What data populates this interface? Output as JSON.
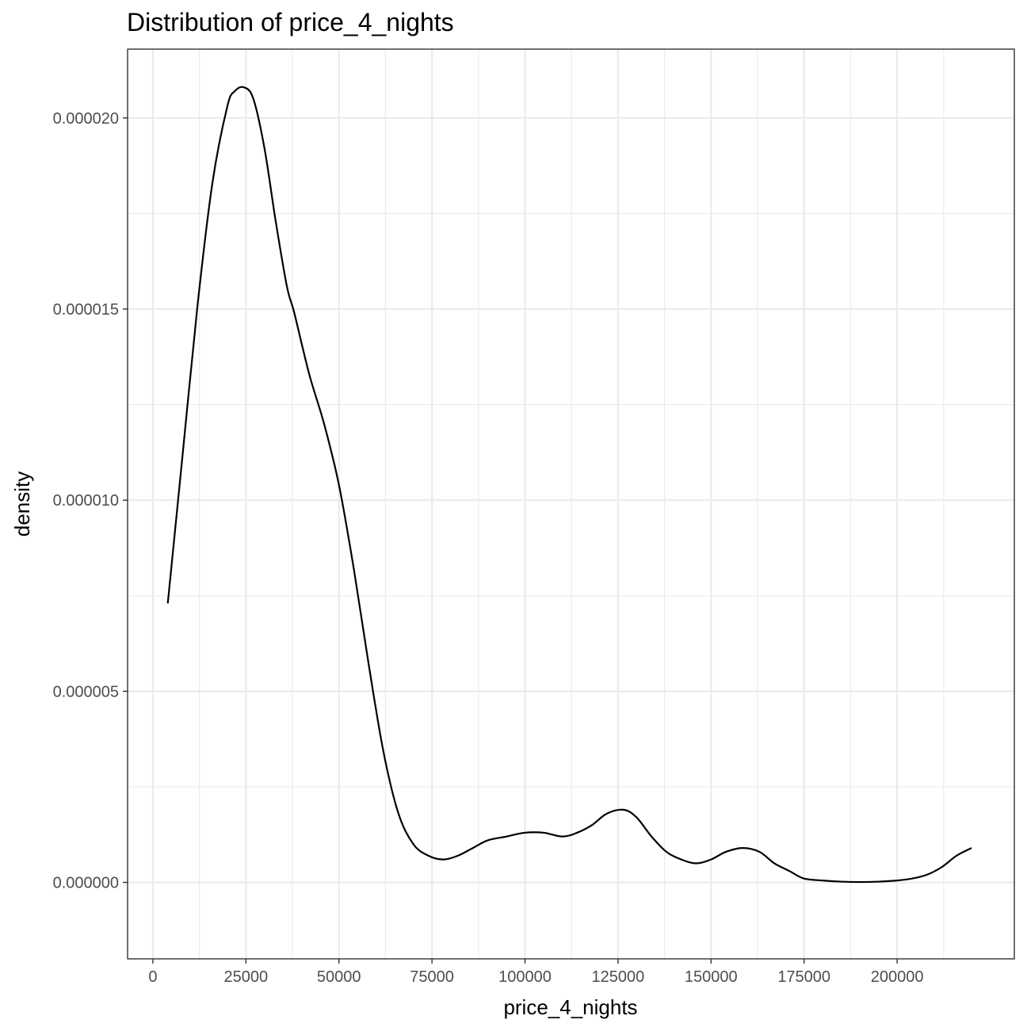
{
  "chart_data": {
    "type": "line",
    "title": "Distribution of price_4_nights",
    "xlabel": "price_4_nights",
    "ylabel": "density",
    "xlim": [
      -6800,
      231500
    ],
    "ylim": [
      -2e-06,
      2.18e-05
    ],
    "x_ticks": [
      0,
      25000,
      50000,
      75000,
      100000,
      125000,
      150000,
      175000,
      200000
    ],
    "x_tick_labels": [
      "0",
      "25000",
      "50000",
      "75000",
      "100000",
      "125000",
      "150000",
      "175000",
      "200000"
    ],
    "x_minor_ticks": [
      12500,
      37500,
      62500,
      87500,
      112500,
      137500,
      162500,
      187500,
      212500
    ],
    "y_ticks": [
      0,
      5e-06,
      1e-05,
      1.5e-05,
      2e-05
    ],
    "y_tick_labels": [
      "0.000000",
      "0.000005",
      "0.000010",
      "0.000015",
      "0.000020"
    ],
    "y_minor_ticks": [
      2.5e-06,
      7.5e-06,
      1.25e-05,
      1.75e-05
    ],
    "grid": true,
    "colors": {
      "line": "#000000",
      "grid": "#ebebeb",
      "panel_border": "#333333",
      "tick_label": "#4d4d4d",
      "background": "#ffffff"
    },
    "series": [
      {
        "x": [
          4000,
          8000,
          12000,
          16000,
          20000,
          22000,
          24500,
          27000,
          30000,
          33000,
          36000,
          38000,
          42000,
          46000,
          50000,
          54000,
          58000,
          62000,
          66000,
          70000,
          74000,
          78000,
          82000,
          86000,
          90000,
          95000,
          100000,
          105000,
          110000,
          114000,
          118000,
          122000,
          126500,
          130000,
          134000,
          138000,
          142000,
          146000,
          150000,
          154000,
          158500,
          163000,
          167000,
          171000,
          175000,
          180000,
          185000,
          190000,
          195000,
          200000,
          204000,
          208000,
          212000,
          216000,
          220000
        ],
        "y": [
          7.3e-06,
          1.12e-05,
          1.51e-05,
          1.83e-05,
          2.03e-05,
          2.07e-05,
          2.08e-05,
          2.05e-05,
          1.92e-05,
          1.73e-05,
          1.56e-05,
          1.49e-05,
          1.33e-05,
          1.2e-05,
          1.04e-05,
          8.2e-06,
          5.7e-06,
          3.4e-06,
          1.8e-06,
          1e-06,
          7e-07,
          6e-07,
          7e-07,
          9e-07,
          1.1e-06,
          1.2e-06,
          1.3e-06,
          1.3e-06,
          1.2e-06,
          1.3e-06,
          1.5e-06,
          1.8e-06,
          1.9e-06,
          1.7e-06,
          1.2e-06,
          8e-07,
          6e-07,
          5e-07,
          6e-07,
          8e-07,
          9e-07,
          8e-07,
          5e-07,
          3e-07,
          1e-07,
          5e-08,
          2e-08,
          1e-08,
          2e-08,
          5e-08,
          1e-07,
          2e-07,
          4e-07,
          7e-07,
          9e-07
        ]
      }
    ]
  }
}
